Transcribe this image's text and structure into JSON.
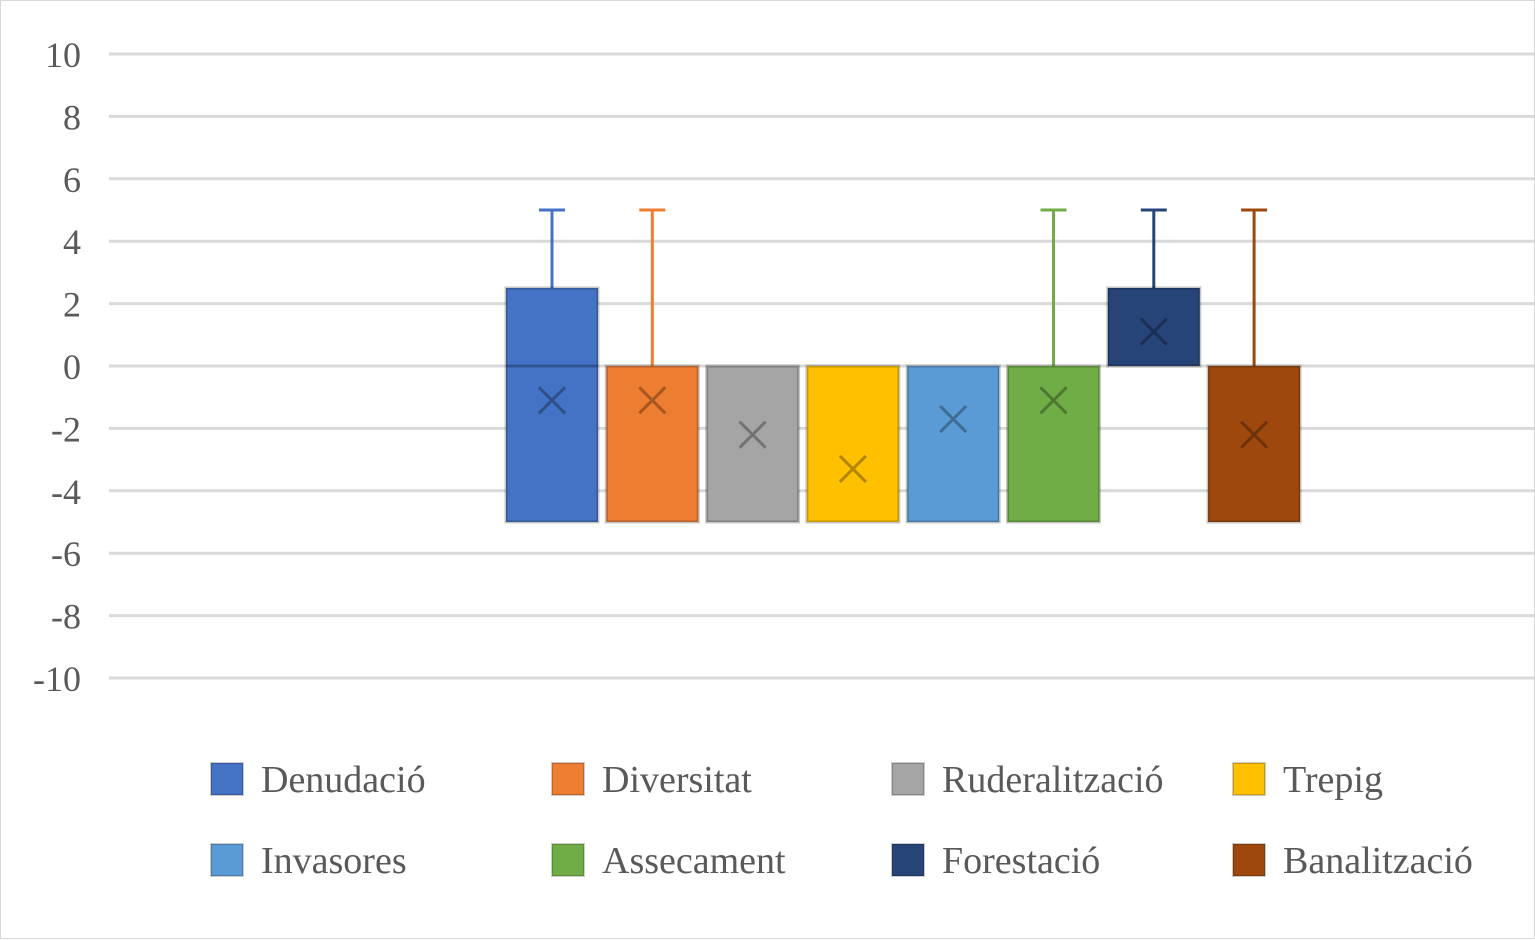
{
  "chart_data": {
    "type": "box",
    "title": "",
    "xlabel": "",
    "ylabel": "",
    "ylim": [
      -10,
      10
    ],
    "yticks": [
      "10",
      "8",
      "6",
      "4",
      "2",
      "0",
      "-2",
      "-4",
      "-6",
      "-8",
      "-10"
    ],
    "ytick_values": [
      10,
      8,
      6,
      4,
      2,
      0,
      -2,
      -4,
      -6,
      -8,
      -10
    ],
    "grid": true,
    "legend_position": "bottom",
    "series": [
      {
        "name": "Denudació",
        "color": "#4472C4",
        "min": -5,
        "q1": -5,
        "median": 0,
        "q3": 2.5,
        "max": 5,
        "mean": -1.1
      },
      {
        "name": "Diversitat",
        "color": "#ED7D31",
        "min": -5,
        "q1": -5,
        "median": 0,
        "q3": 0,
        "max": 5,
        "mean": -1.1
      },
      {
        "name": "Ruderalització",
        "color": "#A5A5A5",
        "min": -5,
        "q1": -5,
        "median": 0,
        "q3": 0,
        "max": 0,
        "mean": -2.2
      },
      {
        "name": "Trepig",
        "color": "#FFC000",
        "min": -5,
        "q1": -5,
        "median": 0,
        "q3": 0,
        "max": 0,
        "mean": -3.3
      },
      {
        "name": "Invasores",
        "color": "#5B9BD5",
        "min": -5,
        "q1": -5,
        "median": 0,
        "q3": 0,
        "max": 0,
        "mean": -1.7
      },
      {
        "name": "Assecament",
        "color": "#70AD47",
        "min": -5,
        "q1": -5,
        "median": 0,
        "q3": 0,
        "max": 5,
        "mean": -1.1
      },
      {
        "name": "Forestació",
        "color": "#264478",
        "min": 0,
        "q1": 0,
        "median": 0,
        "q3": 2.5,
        "max": 5,
        "mean": 1.1
      },
      {
        "name": "Banalització",
        "color": "#9E480E",
        "min": -5,
        "q1": -5,
        "median": 0,
        "q3": 0,
        "max": 5,
        "mean": -2.2
      }
    ]
  }
}
